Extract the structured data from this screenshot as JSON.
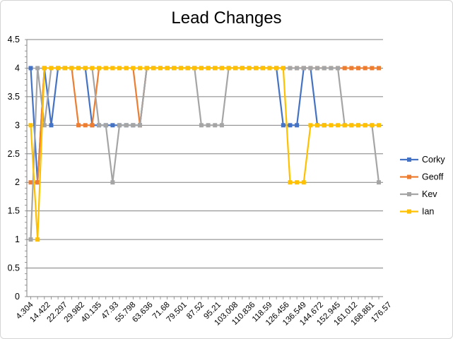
{
  "chart_data": {
    "type": "line",
    "title": "Lead Changes",
    "xlabel": "",
    "ylabel": "",
    "ylim": [
      0,
      4.5
    ],
    "y_ticks": [
      "0",
      "0.5",
      "1",
      "1.5",
      "2",
      "2.5",
      "3",
      "3.5",
      "4",
      "4.5"
    ],
    "x_tick_labels": [
      "4.304",
      "14.422",
      "22.297",
      "29.982",
      "40.135",
      "47.93",
      "55.798",
      "63.636",
      "71.68",
      "79.501",
      "87.52",
      "95.21",
      "103.008",
      "110.836",
      "118.59",
      "126.456",
      "136.549",
      "144.672",
      "152.945",
      "161.012",
      "168.861",
      "176.57"
    ],
    "grid": "horizontal",
    "legend_position": "right",
    "series": [
      {
        "name": "Corky",
        "color": "#4472C4",
        "values": [
          4,
          2,
          4,
          3,
          4,
          4,
          4,
          4,
          4,
          3,
          3,
          3,
          3,
          3,
          3,
          3,
          3,
          4,
          4,
          4,
          4,
          4,
          4,
          4,
          4,
          4,
          4,
          4,
          4,
          4,
          4,
          4,
          4,
          4,
          4,
          4,
          4,
          3,
          3,
          3,
          4,
          4,
          3,
          3,
          null,
          null,
          null,
          null,
          null,
          null,
          null,
          null
        ]
      },
      {
        "name": "Geoff",
        "color": "#ED7D31",
        "values": [
          2,
          2,
          4,
          4,
          4,
          4,
          4,
          3,
          3,
          3,
          4,
          4,
          4,
          4,
          4,
          4,
          3,
          4,
          4,
          4,
          4,
          4,
          4,
          4,
          4,
          4,
          4,
          4,
          4,
          4,
          4,
          4,
          4,
          4,
          4,
          4,
          4,
          4,
          4,
          4,
          4,
          4,
          4,
          4,
          4,
          4,
          4,
          4,
          4,
          4,
          4,
          4
        ]
      },
      {
        "name": "Kev",
        "color": "#A5A5A5",
        "values": [
          1,
          4,
          3,
          4,
          4,
          4,
          4,
          4,
          4,
          4,
          3,
          3,
          2,
          3,
          3,
          3,
          3,
          4,
          4,
          4,
          4,
          4,
          4,
          4,
          4,
          3,
          3,
          3,
          3,
          4,
          4,
          4,
          4,
          4,
          4,
          4,
          4,
          4,
          4,
          4,
          4,
          4,
          4,
          4,
          4,
          4,
          3,
          3,
          3,
          3,
          3,
          2
        ]
      },
      {
        "name": "Ian",
        "color": "#FFC000",
        "values": [
          3,
          1,
          4,
          4,
          4,
          4,
          4,
          4,
          4,
          4,
          4,
          4,
          4,
          4,
          4,
          4,
          4,
          4,
          4,
          4,
          4,
          4,
          4,
          4,
          4,
          4,
          4,
          4,
          4,
          4,
          4,
          4,
          4,
          4,
          4,
          4,
          4,
          4,
          2,
          2,
          2,
          3,
          3,
          3,
          3,
          3,
          3,
          3,
          3,
          3,
          3,
          3
        ]
      }
    ]
  }
}
